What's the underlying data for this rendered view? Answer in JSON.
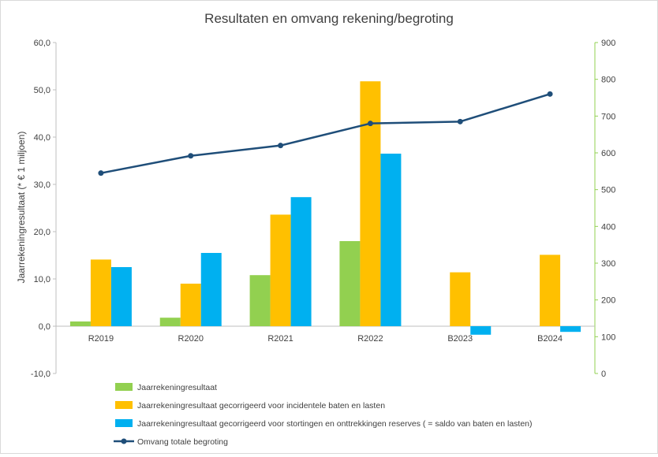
{
  "chart_data": {
    "type": "bar",
    "title": "Resultaten en omvang rekening/begroting",
    "ylabel": "Jaarrekeningresultaat (* € 1 miljoen)",
    "y2label": "",
    "categories": [
      "R2019",
      "R2020",
      "R2021",
      "R2022",
      "B2023",
      "B2024"
    ],
    "ylim": [
      -10,
      60
    ],
    "y_ticks": [
      "-10,0",
      "0,0",
      "10,0",
      "20,0",
      "30,0",
      "40,0",
      "50,0",
      "60,0"
    ],
    "y2lim": [
      0,
      900
    ],
    "y2_ticks": [
      "0",
      "100",
      "200",
      "300",
      "400",
      "500",
      "600",
      "700",
      "800",
      "900"
    ],
    "grid": false,
    "legend_position": "bottom",
    "series": [
      {
        "name": "Jaarrekeningresultaat",
        "type": "bar",
        "axis": "left",
        "color": "#92d050",
        "values": [
          1.0,
          1.8,
          10.8,
          18.0,
          null,
          null
        ]
      },
      {
        "name": "Jaarrekeningresultaat gecorrigeerd voor incidentele baten en lasten",
        "type": "bar",
        "axis": "left",
        "color": "#ffc000",
        "values": [
          14.1,
          9.0,
          23.6,
          51.8,
          11.4,
          15.1
        ]
      },
      {
        "name": "Jaarrekeningresultaat gecorrigeerd voor stortingen en onttrekkingen reserves ( = saldo van baten en lasten)",
        "type": "bar",
        "axis": "left",
        "color": "#00b0f0",
        "values": [
          12.5,
          15.5,
          27.3,
          36.5,
          -1.8,
          -1.2
        ]
      },
      {
        "name": "Omvang totale begroting",
        "type": "line",
        "axis": "right",
        "color": "#1f4e79",
        "values": [
          545,
          592,
          620,
          680,
          685,
          760
        ]
      }
    ],
    "axis_colors": {
      "left": "#bfbfbf",
      "right": "#92d050",
      "zero_line": "#bfbfbf"
    }
  }
}
